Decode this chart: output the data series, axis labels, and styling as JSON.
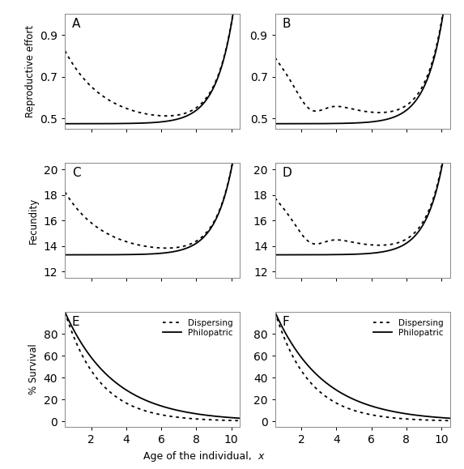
{
  "title": "",
  "xlabel": "Age of the individual, ι",
  "xlabel_text": "Age of the individual, x",
  "panels": [
    "A",
    "B",
    "C",
    "D",
    "E",
    "F"
  ],
  "row_labels": [
    "Reproductive effort",
    "Fecundity",
    "% Survival"
  ],
  "xlim": [
    0.5,
    10.5
  ],
  "xticks": [
    2,
    4,
    6,
    8,
    10
  ],
  "re_ylim": [
    0.45,
    1.0
  ],
  "re_yticks": [
    0.5,
    0.7,
    0.9
  ],
  "fec_ylim": [
    11.5,
    20.5
  ],
  "fec_yticks": [
    12,
    14,
    16,
    18,
    20
  ],
  "surv_ylim": [
    -5,
    100
  ],
  "surv_yticks": [
    0,
    20,
    40,
    60,
    80
  ],
  "legend_entries": [
    "Dispersing",
    "Philopatric"
  ],
  "background_color": "#ffffff",
  "fig_width": 5.73,
  "fig_height": 5.79,
  "dpi": 100
}
